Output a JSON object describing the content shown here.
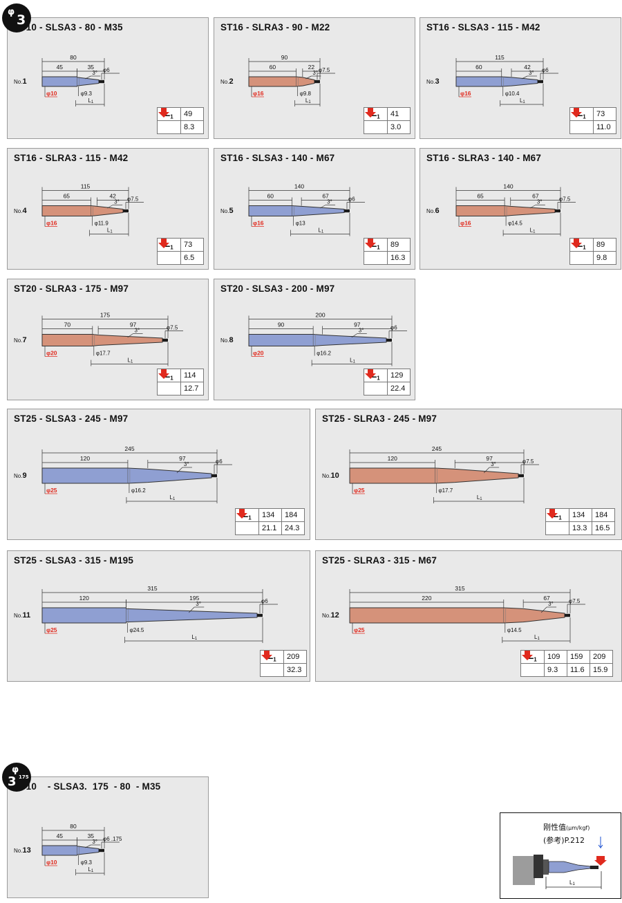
{
  "section_badge": {
    "symbol": "φ",
    "number": "3"
  },
  "section_badge_2": {
    "symbol": "φ",
    "number": "3",
    "sub": "175"
  },
  "panels": [
    {
      "title": "ST10 - SLSA3 - 80 - M35",
      "no": "1",
      "type": "SLSA",
      "total": "80",
      "shank": "45",
      "taper": "35",
      "tip": "φ6",
      "angle": "3°",
      "shank_d": "φ10",
      "mid_d": "φ9.3",
      "L1": [
        "49"
      ],
      "rigidity": [
        "8.3"
      ]
    },
    {
      "title": "ST16 - SLRA3 - 90 - M22",
      "no": "2",
      "type": "SLRA",
      "total": "90",
      "shank": "60",
      "taper": "22",
      "tip": "φ7.5",
      "angle": "3°",
      "shank_d": "φ16",
      "mid_d": "φ9.8",
      "L1": [
        "41"
      ],
      "rigidity": [
        "3.0"
      ]
    },
    {
      "title": "ST16 - SLSA3 - 115 - M42",
      "no": "3",
      "type": "SLSA",
      "total": "115",
      "shank": "60",
      "taper": "42",
      "tip": "φ6",
      "angle": "3°",
      "shank_d": "φ16",
      "mid_d": "φ10.4",
      "L1": [
        "73"
      ],
      "rigidity": [
        "11.0"
      ]
    },
    {
      "title": "ST16 - SLRA3 - 115 - M42",
      "no": "4",
      "type": "SLRA",
      "total": "115",
      "shank": "65",
      "taper": "42",
      "tip": "φ7.5",
      "angle": "3°",
      "shank_d": "φ16",
      "mid_d": "φ11.9",
      "L1": [
        "73"
      ],
      "rigidity": [
        "6.5"
      ]
    },
    {
      "title": "ST16 - SLSA3 - 140 - M67",
      "no": "5",
      "type": "SLSA",
      "total": "140",
      "shank": "60",
      "taper": "67",
      "tip": "φ6",
      "angle": "3°",
      "shank_d": "φ16",
      "mid_d": "φ13",
      "L1": [
        "89"
      ],
      "rigidity": [
        "16.3"
      ]
    },
    {
      "title": "ST16 - SLRA3 - 140 - M67",
      "no": "6",
      "type": "SLRA",
      "total": "140",
      "shank": "65",
      "taper": "67",
      "tip": "φ7.5",
      "angle": "3°",
      "shank_d": "φ16",
      "mid_d": "φ14.5",
      "L1": [
        "89"
      ],
      "rigidity": [
        "9.8"
      ]
    },
    {
      "title": "ST20 - SLRA3 - 175 - M97",
      "no": "7",
      "type": "SLRA",
      "total": "175",
      "shank": "70",
      "taper": "97",
      "tip": "φ7.5",
      "angle": "3°",
      "shank_d": "φ20",
      "mid_d": "φ17.7",
      "L1": [
        "114"
      ],
      "rigidity": [
        "12.7"
      ]
    },
    {
      "title": "ST20 - SLSA3 - 200 - M97",
      "no": "8",
      "type": "SLSA",
      "total": "200",
      "shank": "90",
      "taper": "97",
      "tip": "φ6",
      "angle": "3°",
      "shank_d": "φ20",
      "mid_d": "φ16.2",
      "L1": [
        "129"
      ],
      "rigidity": [
        "22.4"
      ]
    },
    {
      "title": "ST25 - SLSA3 - 245 - M97",
      "no": "9",
      "type": "SLSA",
      "total": "245",
      "shank": "120",
      "taper": "97",
      "tip": "φ6",
      "angle": "3°",
      "shank_d": "φ25",
      "mid_d": "φ16.2",
      "L1": [
        "134",
        "184"
      ],
      "rigidity": [
        "21.1",
        "24.3"
      ]
    },
    {
      "title": "ST25 - SLRA3 - 245 - M97",
      "no": "10",
      "type": "SLRA",
      "total": "245",
      "shank": "120",
      "taper": "97",
      "tip": "φ7.5",
      "angle": "3°",
      "shank_d": "φ25",
      "mid_d": "φ17.7",
      "L1": [
        "134",
        "184"
      ],
      "rigidity": [
        "13.3",
        "16.5"
      ]
    },
    {
      "title": "ST25 - SLSA3 - 315 - M195",
      "no": "11",
      "type": "SLSA",
      "total": "315",
      "shank": "120",
      "taper": "195",
      "tip": "φ6",
      "angle": "3°",
      "shank_d": "φ25",
      "mid_d": "φ24.5",
      "L1": [
        "209"
      ],
      "rigidity": [
        "32.3"
      ]
    },
    {
      "title": "ST25 - SLRA3 - 315 - M67",
      "no": "12",
      "type": "SLRA",
      "total": "315",
      "shank": "220",
      "taper": "67",
      "tip": "φ7.5",
      "angle": "3°",
      "shank_d": "φ25",
      "mid_d": "φ14.5",
      "L1": [
        "109",
        "159",
        "209"
      ],
      "rigidity": [
        "9.3",
        "11.6",
        "15.9"
      ]
    },
    {
      "title": "ST10    - SLSA3.  175  - 80  - M35",
      "no": "13",
      "type": "SLSA",
      "total": "80",
      "shank": "45",
      "taper": "35",
      "tip": "φ6  .175",
      "angle": "3°",
      "shank_d": "φ10",
      "mid_d": "φ9.3",
      "L1": [],
      "rigidity": []
    }
  ],
  "labels": {
    "no_prefix": "No.",
    "L_header": "L",
    "L_sub": "1"
  },
  "legend": {
    "rigidity_label": "刚性值",
    "rigidity_unit": "(μm/kgf)",
    "reference": "(参考)P.212",
    "L_label": "L",
    "L_sub": "1"
  },
  "colors": {
    "slsa": "#8f9fd2",
    "slra": "#d5927a",
    "arrow": "#e02a1e",
    "red_text": "#e02a1e"
  }
}
